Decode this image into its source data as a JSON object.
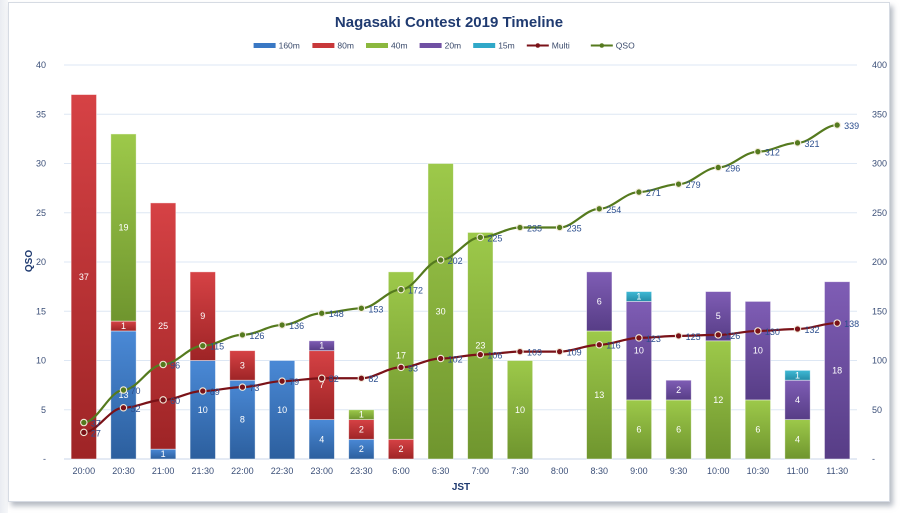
{
  "chart_data": {
    "type": "bar",
    "subtype": "stacked-bar-with-lines",
    "title": "Nagasaki  Contest  2019 Timeline",
    "xlabel": "JST",
    "ylabel": "QSO",
    "ylim": [
      0,
      40
    ],
    "y2lim": [
      0,
      400
    ],
    "yticks": [
      "-",
      "5",
      "10",
      "15",
      "20",
      "25",
      "30",
      "35",
      "40"
    ],
    "y2ticks": [
      "-",
      "50",
      "100",
      "150",
      "200",
      "250",
      "300",
      "350",
      "400"
    ],
    "grid": true,
    "legend_position": "top",
    "categories": [
      "20:00",
      "20:30",
      "21:00",
      "21:30",
      "22:00",
      "22:30",
      "23:00",
      "23:30",
      "6:00",
      "6:30",
      "7:00",
      "7:30",
      "8:00",
      "8:30",
      "9:00",
      "9:30",
      "10:00",
      "10:30",
      "11:00",
      "11:30"
    ],
    "series": [
      {
        "name": "160m",
        "kind": "bar",
        "axis": "left",
        "color": "#3a78c4",
        "values": [
          0,
          13,
          1,
          10,
          8,
          10,
          4,
          2,
          0,
          0,
          0,
          0,
          0,
          0,
          0,
          0,
          0,
          0,
          0,
          0
        ]
      },
      {
        "name": "80m",
        "kind": "bar",
        "axis": "left",
        "color": "#c8383a",
        "values": [
          37,
          1,
          25,
          9,
          3,
          0,
          7,
          2,
          2,
          0,
          0,
          0,
          0,
          0,
          0,
          0,
          0,
          0,
          0,
          0
        ]
      },
      {
        "name": "40m",
        "kind": "bar",
        "axis": "left",
        "color": "#8bb83e",
        "values": [
          0,
          19,
          0,
          0,
          0,
          0,
          0,
          1,
          17,
          30,
          23,
          10,
          0,
          13,
          6,
          6,
          12,
          6,
          4,
          0
        ]
      },
      {
        "name": "20m",
        "kind": "bar",
        "axis": "left",
        "color": "#7050a3",
        "values": [
          0,
          0,
          0,
          0,
          0,
          0,
          1,
          0,
          0,
          0,
          0,
          0,
          0,
          6,
          10,
          2,
          5,
          10,
          4,
          18
        ]
      },
      {
        "name": "15m",
        "kind": "bar",
        "axis": "left",
        "color": "#30a8c8",
        "values": [
          0,
          0,
          0,
          0,
          0,
          0,
          0,
          0,
          0,
          0,
          0,
          0,
          0,
          0,
          1,
          0,
          0,
          0,
          1,
          0
        ]
      },
      {
        "name": "Multi",
        "kind": "line",
        "axis": "right",
        "color": "#7a1218",
        "values": [
          27,
          52,
          60,
          69,
          73,
          79,
          82,
          82,
          93,
          102,
          106,
          109,
          109,
          116,
          123,
          125,
          126,
          130,
          132,
          138
        ]
      },
      {
        "name": "QSO",
        "kind": "line",
        "axis": "right",
        "color": "#557a1e",
        "values": [
          37,
          70,
          96,
          115,
          126,
          136,
          148,
          153,
          172,
          202,
          225,
          235,
          235,
          254,
          271,
          279,
          296,
          312,
          321,
          339
        ]
      }
    ]
  }
}
